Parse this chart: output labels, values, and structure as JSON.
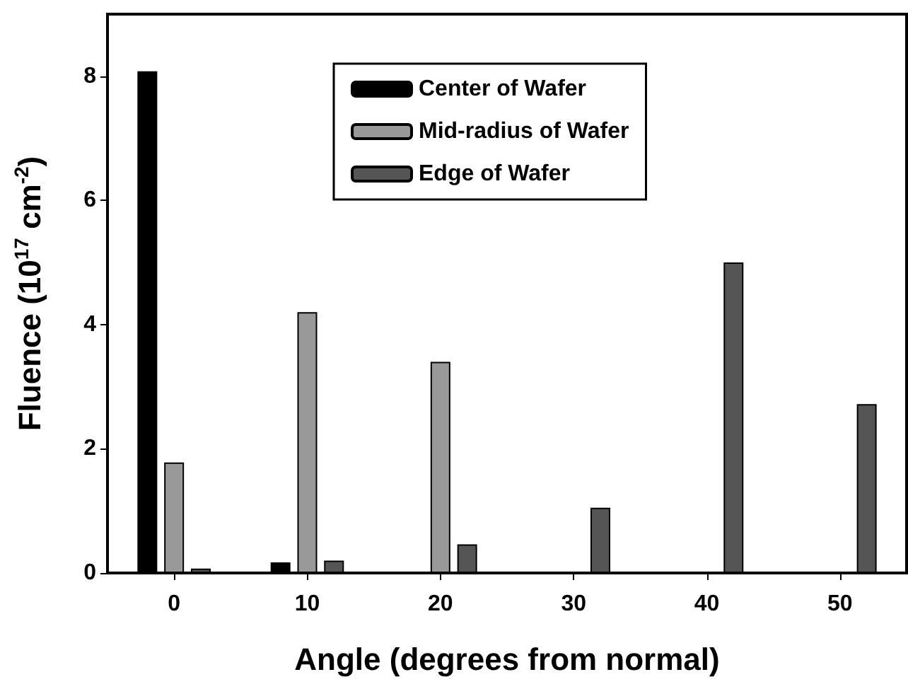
{
  "chart_data": {
    "type": "bar",
    "xlabel": "Angle (degrees from normal)",
    "ylabel": "Fluence (10$^{17}$ cm$^{-2}$)",
    "categories": [
      "0",
      "10",
      "20",
      "30",
      "40",
      "50"
    ],
    "series": [
      {
        "name": "Center of Wafer",
        "color": "#000000",
        "values": [
          8.08,
          0.17,
          null,
          null,
          null,
          null
        ]
      },
      {
        "name": "Mid-radius of Wafer",
        "color": "#999999",
        "values": [
          1.78,
          4.2,
          3.4,
          null,
          null,
          null
        ]
      },
      {
        "name": "Edge of Wafer",
        "color": "#555555",
        "values": [
          0.07,
          0.2,
          0.46,
          1.05,
          5.0,
          2.72
        ]
      }
    ],
    "ylim": [
      0,
      9
    ],
    "yticks": [
      0,
      2,
      4,
      6,
      8
    ],
    "grid": false,
    "legend": "top"
  }
}
